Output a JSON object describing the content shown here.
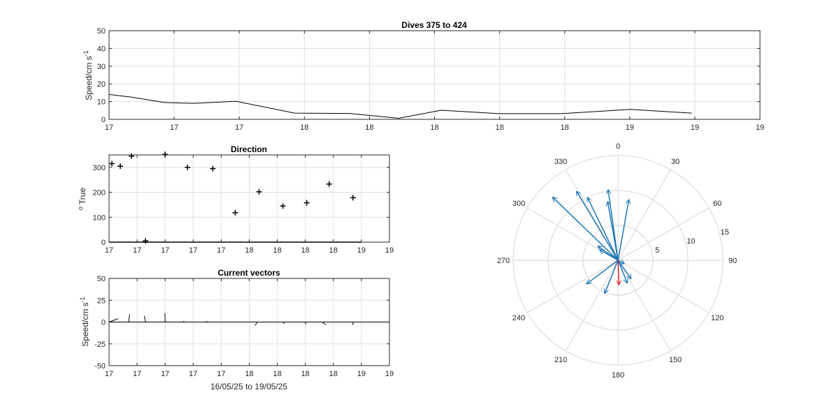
{
  "chart_data": [
    {
      "id": "speed",
      "type": "line",
      "title": "Dives 375 to 424",
      "ylabel": "Speed/cm s",
      "ylabel_exp": "-1",
      "xticklabels": [
        "17",
        "17",
        "17",
        "18",
        "18",
        "18",
        "18",
        "18",
        "19",
        "19",
        "19"
      ],
      "yticks": [
        0,
        10,
        20,
        30,
        40,
        50
      ],
      "ylim": [
        0,
        50
      ],
      "grid": true,
      "series": [
        {
          "color": "#000000",
          "x": [
            0.0,
            0.35,
            0.85,
            1.3,
            1.95,
            2.85,
            3.7,
            4.45,
            5.1,
            6.0,
            6.95,
            8.0,
            8.95
          ],
          "y": [
            14,
            12.5,
            9.5,
            9,
            10.2,
            3.5,
            3.3,
            0.6,
            5.1,
            3.2,
            3.2,
            5.6,
            3.5
          ]
        }
      ]
    },
    {
      "id": "direction",
      "type": "scatter",
      "title": "Direction",
      "ylabel": "True",
      "ylabel_prefix": "o",
      "xticklabels": [
        "17",
        "17",
        "17",
        "17",
        "17",
        "18",
        "18",
        "18",
        "18",
        "19",
        "19"
      ],
      "yticks": [
        0,
        100,
        200,
        300
      ],
      "ylim": [
        0,
        350
      ],
      "grid": true,
      "points": {
        "x": [
          0.1,
          0.4,
          0.8,
          1.3,
          2.0,
          2.8,
          3.7,
          4.5,
          5.35,
          6.2,
          7.05,
          7.85,
          8.7
        ],
        "y": [
          315,
          305,
          345,
          5,
          352,
          300,
          295,
          118,
          202,
          145,
          158,
          233,
          178
        ]
      }
    },
    {
      "id": "vectors",
      "type": "line",
      "title": "Current vectors",
      "xlabel": "16/05/25 to 19/05/25",
      "ylabel": "Speed/cm s",
      "ylabel_exp": "-1",
      "xticklabels": [
        "17",
        "17",
        "17",
        "17",
        "17",
        "18",
        "18",
        "18",
        "18",
        "19",
        "19"
      ],
      "yticks": [
        50,
        25,
        0,
        -25,
        -50
      ],
      "ylim": [
        -50,
        50
      ],
      "grid": true,
      "sticks": [
        {
          "x": 0.0,
          "u": 10.2,
          "v": 3.8
        },
        {
          "x": 0.7,
          "u": 1.1,
          "v": 9.0
        },
        {
          "x": 1.3,
          "u": -1.4,
          "v": 7.0
        },
        {
          "x": 2.0,
          "u": -0.3,
          "v": 10.2
        },
        {
          "x": 2.7,
          "u": -1.6,
          "v": 1.0
        },
        {
          "x": 3.5,
          "u": -1.1,
          "v": 1.0
        },
        {
          "x": 5.3,
          "u": -3.2,
          "v": -4.0
        },
        {
          "x": 6.2,
          "u": 1.8,
          "v": -2.3
        },
        {
          "x": 7.0,
          "u": 0.7,
          "v": -2.6
        },
        {
          "x": 7.6,
          "u": 4.4,
          "v": -3.2
        },
        {
          "x": 8.7,
          "u": -0.1,
          "v": -3.5
        }
      ]
    },
    {
      "id": "polar",
      "type": "polar",
      "angle_labels": [
        "0",
        "30",
        "60",
        "90",
        "120",
        "150",
        "180",
        "210",
        "240",
        "270",
        "300",
        "330"
      ],
      "radial_labels": [
        "5",
        "10",
        "15"
      ],
      "rlim": [
        0,
        15
      ],
      "vectors_color": "#1f77b4",
      "highlight_color": "#d62728",
      "vectors": [
        {
          "dir": 329,
          "speed": 11.5
        },
        {
          "dir": 314,
          "speed": 13.0
        },
        {
          "dir": 334,
          "speed": 10.0
        },
        {
          "dir": 352,
          "speed": 10.2
        },
        {
          "dir": 350,
          "speed": 8.5
        },
        {
          "dir": 10,
          "speed": 8.8
        },
        {
          "dir": 305,
          "speed": 3.5
        },
        {
          "dir": 300,
          "speed": 3.0
        },
        {
          "dir": 233,
          "speed": 5.6
        },
        {
          "dir": 202,
          "speed": 5.1
        },
        {
          "dir": 158,
          "speed": 3.5
        },
        {
          "dir": 145,
          "speed": 3.2
        },
        {
          "dir": 118,
          "speed": 1.0
        }
      ],
      "highlight": {
        "dir": 178,
        "speed": 3.5
      }
    }
  ]
}
